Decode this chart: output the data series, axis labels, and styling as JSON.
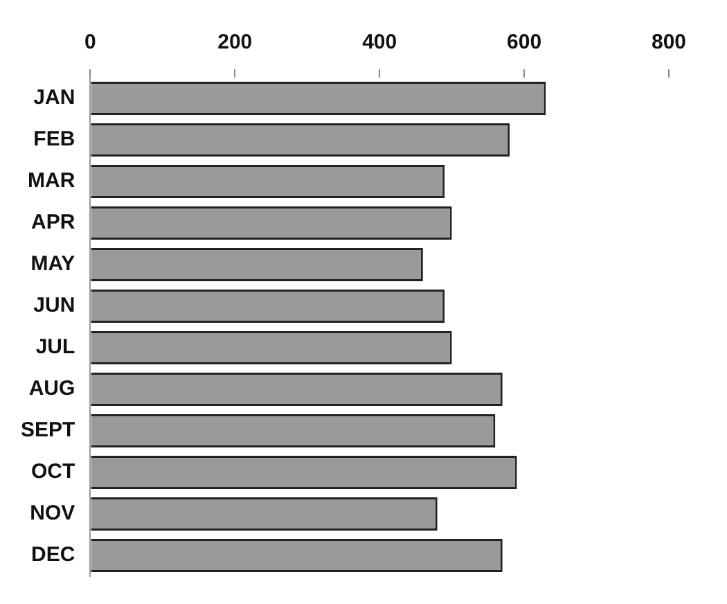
{
  "chart_data": {
    "type": "bar",
    "orientation": "horizontal",
    "categories": [
      "JAN",
      "FEB",
      "MAR",
      "APR",
      "MAY",
      "JUN",
      "JUL",
      "AUG",
      "SEPT",
      "OCT",
      "NOV",
      "DEC"
    ],
    "values": [
      630,
      580,
      490,
      500,
      460,
      490,
      500,
      570,
      560,
      590,
      480,
      570
    ],
    "color": "#9a9a9a",
    "xlim": [
      0,
      800
    ],
    "xticks": [
      0,
      200,
      400,
      600,
      800
    ],
    "grid": false,
    "legend": false
  }
}
